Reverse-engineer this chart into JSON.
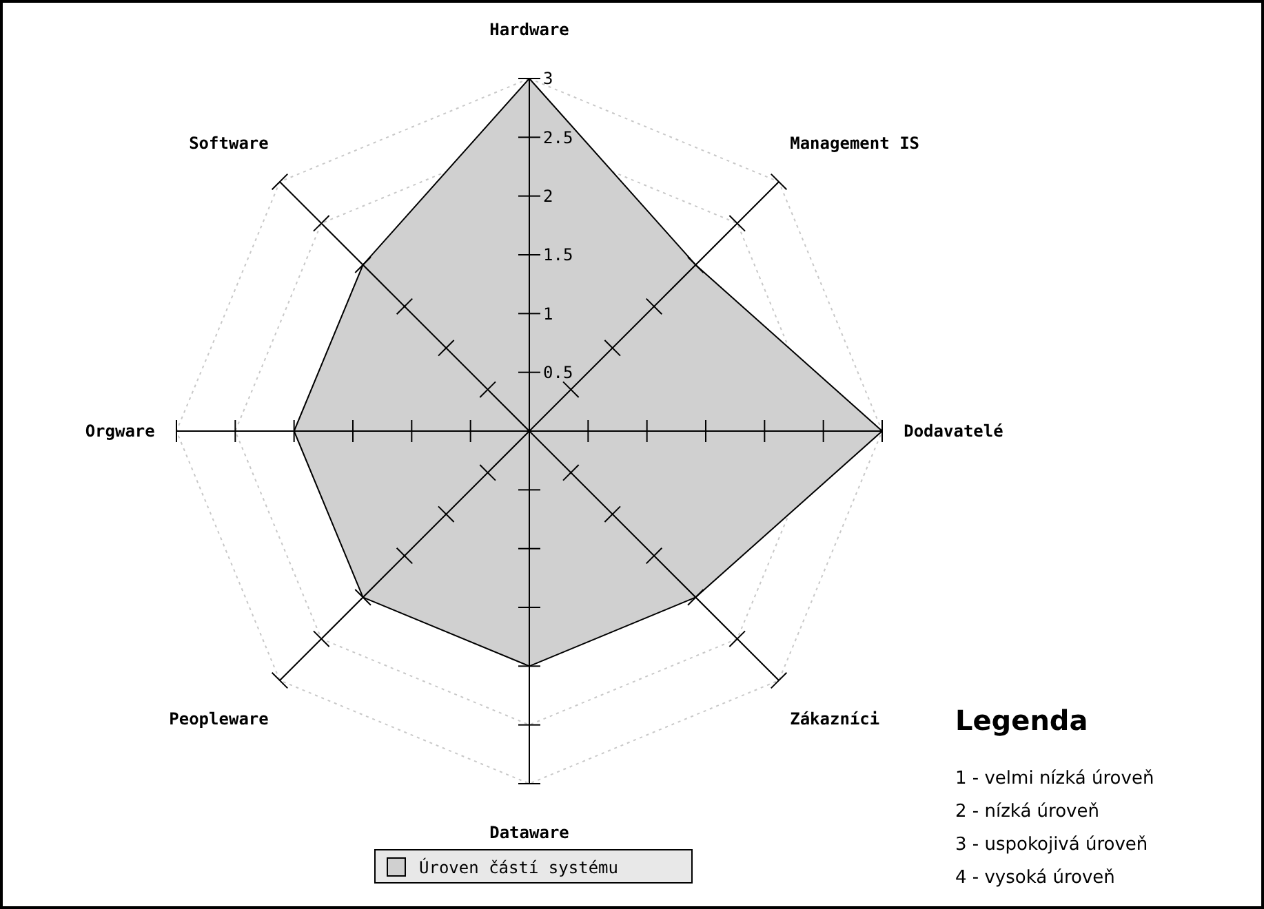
{
  "chart_data": {
    "type": "radar",
    "categories": [
      "Hardware",
      "Management IS",
      "Dodavatelé",
      "Zákazníci",
      "Dataware",
      "Peopleware",
      "Orgware",
      "Software"
    ],
    "series": [
      {
        "name": "Úroven částí systému",
        "color": "#d0d0d0",
        "values": [
          3,
          2,
          3,
          2,
          2,
          2,
          2,
          2
        ]
      }
    ],
    "ylim": [
      0,
      3
    ],
    "yticks": [
      0.5,
      1,
      1.5,
      2,
      2.5,
      3
    ],
    "grid": true,
    "legend": "bottom",
    "annotations": [
      "Legenda",
      "1 - velmi nízká úroveň",
      "2 - nízká úroveň",
      "3 - uspokojivá úroveň",
      "4 - vysoká úroveň"
    ]
  }
}
